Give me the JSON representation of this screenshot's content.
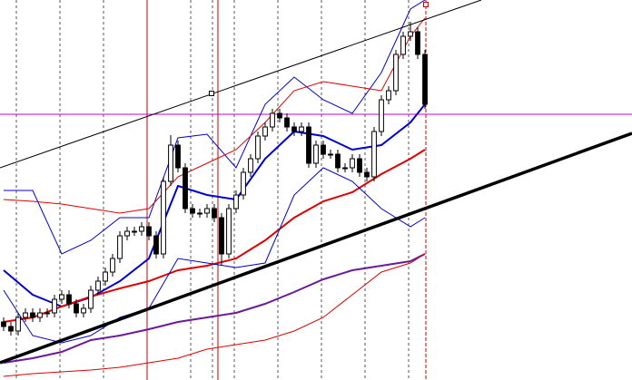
{
  "chart_data": {
    "type": "candlestick",
    "xlim": [
      -0.5,
      86.5
    ],
    "ylim": [
      0,
      419
    ],
    "color": "#000000",
    "up_fill": "#ffffff",
    "down_fill": "#000000",
    "open": [
      64,
      59,
      54,
      69,
      74,
      69,
      74,
      74,
      89,
      94,
      84,
      74,
      79,
      99,
      109,
      119,
      134,
      159,
      164,
      164,
      169,
      159,
      139,
      219,
      259,
      234,
      189,
      184,
      184,
      189,
      179,
      139,
      189,
      204,
      229,
      244,
      269,
      279,
      294,
      289,
      279,
      274,
      279,
      239,
      259,
      249,
      249,
      234,
      234,
      244,
      229,
      224,
      274,
      309,
      319,
      359,
      379,
      384,
      359
    ],
    "high": [
      69,
      64,
      74,
      79,
      79,
      79,
      79,
      94,
      99,
      99,
      89,
      84,
      104,
      114,
      124,
      139,
      164,
      169,
      169,
      174,
      174,
      164,
      224,
      270,
      264,
      239,
      194,
      189,
      194,
      194,
      184,
      194,
      209,
      234,
      249,
      274,
      284,
      299,
      299,
      294,
      284,
      284,
      284,
      264,
      264,
      254,
      254,
      239,
      249,
      249,
      234,
      279,
      314,
      324,
      364,
      384,
      395,
      389,
      364
    ],
    "low": [
      54,
      49,
      49,
      64,
      64,
      64,
      69,
      69,
      84,
      79,
      69,
      69,
      74,
      94,
      104,
      114,
      129,
      154,
      159,
      159,
      154,
      134,
      134,
      214,
      229,
      184,
      179,
      179,
      179,
      174,
      126,
      134,
      184,
      199,
      224,
      239,
      264,
      274,
      284,
      274,
      269,
      269,
      234,
      234,
      244,
      244,
      229,
      229,
      229,
      224,
      219,
      219,
      269,
      304,
      314,
      354,
      374,
      354,
      299
    ],
    "close": [
      59,
      54,
      69,
      74,
      69,
      74,
      74,
      89,
      94,
      84,
      74,
      79,
      99,
      109,
      119,
      134,
      159,
      164,
      164,
      169,
      159,
      139,
      219,
      259,
      234,
      189,
      184,
      184,
      189,
      179,
      139,
      189,
      204,
      229,
      244,
      269,
      279,
      294,
      289,
      279,
      274,
      279,
      239,
      259,
      249,
      249,
      234,
      234,
      244,
      229,
      224,
      274,
      309,
      319,
      359,
      379,
      384,
      359,
      304
    ],
    "lines": [
      {
        "color": "#0000cc",
        "width": 2,
        "x": [
          0,
          4,
          8,
          12,
          16,
          20,
          24,
          28,
          32,
          36,
          40,
          44,
          48,
          52,
          56,
          58
        ],
        "values": [
          121,
          94,
          81,
          91,
          109,
          134,
          214,
          204,
          199,
          244,
          274,
          269,
          254,
          259,
          284,
          304
        ]
      },
      {
        "color": "#dd0000",
        "width": 2,
        "x": [
          0,
          4,
          8,
          12,
          16,
          20,
          24,
          28,
          32,
          36,
          40,
          44,
          48,
          52,
          56,
          58
        ],
        "values": [
          64,
          69,
          81,
          92,
          101,
          109,
          121,
          126,
          134,
          154,
          179,
          197,
          207,
          227,
          244,
          254
        ]
      },
      {
        "color": "#6a1b9a",
        "width": 2,
        "x": [
          0,
          4,
          8,
          12,
          16,
          20,
          24,
          28,
          32,
          36,
          40,
          44,
          48,
          52,
          56,
          58
        ],
        "values": [
          19,
          24,
          31,
          44,
          49,
          56,
          64,
          69,
          74,
          84,
          97,
          111,
          121,
          126,
          131,
          139
        ]
      },
      {
        "color": "#0000cc",
        "width": 1,
        "x": [
          0,
          4,
          8,
          12,
          16,
          20,
          24,
          28,
          32,
          36,
          40,
          44,
          48,
          52,
          56,
          58
        ],
        "values": [
          209,
          209,
          139,
          154,
          179,
          179,
          267,
          271,
          234,
          304,
          334,
          309,
          294,
          339,
          409,
          419
        ]
      },
      {
        "color": "#0000cc",
        "width": 1,
        "x": [
          0,
          4,
          8,
          12,
          16,
          20,
          24,
          28,
          32,
          36,
          40,
          44,
          48,
          52,
          56,
          58
        ],
        "values": [
          99,
          49,
          41,
          49,
          69,
          79,
          134,
          129,
          124,
          129,
          204,
          234,
          219,
          189,
          169,
          179
        ]
      },
      {
        "color": "#dd0000",
        "width": 1,
        "x": [
          0,
          4,
          8,
          12,
          16,
          20,
          24,
          28,
          32,
          36,
          40,
          44,
          48,
          52,
          56,
          58
        ],
        "values": [
          199,
          197,
          194,
          189,
          184,
          189,
          224,
          239,
          254,
          284,
          319,
          329,
          324,
          319,
          379,
          399
        ]
      },
      {
        "color": "#dd0000",
        "width": 1,
        "x": [
          0,
          4,
          8,
          12,
          16,
          20,
          24,
          28,
          32,
          36,
          40,
          44,
          48,
          52,
          56,
          58
        ],
        "values": [
          4,
          7,
          9,
          11,
          14,
          19,
          24,
          34,
          39,
          44,
          54,
          69,
          94,
          119,
          129,
          139
        ]
      }
    ]
  }
}
